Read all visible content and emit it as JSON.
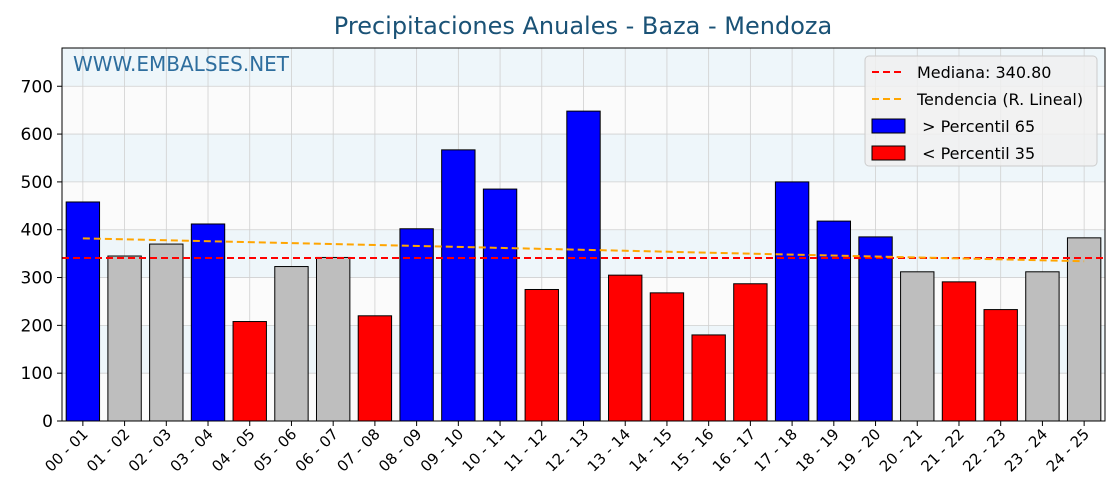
{
  "colors": {
    "above": "#0000ff",
    "below": "#ff0000",
    "normal": "#bebebe",
    "median": "#ff0000",
    "trend": "#ffa500",
    "title": "#1a5276",
    "watermark": "#2e6e9e",
    "band": "#eef6fa"
  },
  "chart_data": {
    "type": "bar",
    "title": "Precipitaciones Anuales - Baza - Mendoza",
    "watermark": "WWW.EMBALSES.NET",
    "xlabel": "",
    "ylabel": "",
    "ylim": [
      0,
      780
    ],
    "yticks": [
      0,
      100,
      200,
      300,
      400,
      500,
      600,
      700
    ],
    "grid": true,
    "legend_position": "top-right",
    "categories": [
      "00 - 01",
      "01 - 02",
      "02 - 03",
      "03 - 04",
      "04 - 05",
      "05 - 06",
      "06 - 07",
      "07 - 08",
      "08 - 09",
      "09 - 10",
      "10 - 11",
      "11 - 12",
      "12 - 13",
      "13 - 14",
      "14 - 15",
      "15 - 16",
      "16 - 17",
      "17 - 18",
      "18 - 19",
      "19 - 20",
      "20 - 21",
      "21 - 22",
      "22 - 23",
      "23 - 24",
      "24 - 25"
    ],
    "values": [
      458,
      345,
      370,
      412,
      208,
      323,
      342,
      220,
      402,
      567,
      485,
      275,
      648,
      305,
      268,
      180,
      287,
      500,
      418,
      385,
      312,
      291,
      233,
      312,
      383
    ],
    "classes": [
      "above",
      "normal",
      "normal",
      "above",
      "below",
      "normal",
      "normal",
      "below",
      "above",
      "above",
      "above",
      "below",
      "above",
      "below",
      "below",
      "below",
      "below",
      "above",
      "above",
      "above",
      "normal",
      "below",
      "below",
      "normal",
      "normal"
    ],
    "median": 340.8,
    "trend": {
      "start": 382,
      "end": 334
    },
    "legend": [
      {
        "label": "Mediana: 340.80",
        "kind": "median"
      },
      {
        "label": "Tendencia (R. Lineal)",
        "kind": "trend"
      },
      {
        "label": " > Percentil 65",
        "kind": "above"
      },
      {
        "label": " < Percentil 35",
        "kind": "below"
      }
    ]
  }
}
